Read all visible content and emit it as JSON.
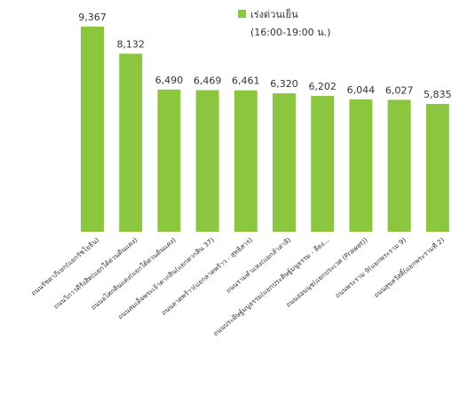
{
  "chart_data": {
    "type": "bar",
    "categories": [
      "ถนนรัชดาภิเษก(แยกรัชโยธิน)",
      "ถนนวิภาวดีรังสิต(แยกใต้ด่วนดินแดง)",
      "ถนนอโศกดินแดง(แยกใต้ด่วนดินแดง)",
      "ถนนสมเด็จพระเจ้าตากสิน(แยกตากสิน 37)",
      "ถนนลาดพร้าว(แยกลาดพร้าว - สุทธิสาร)",
      "ถนนรามคำแหง(แยกลำสาลี)",
      "ถนนประดิษฐ์มนูธรรม(แยกประดิษฐ์มนูธรรม - ลียง...",
      "ถนนอ่อนนุช(แยกประเวศ (Prawet))",
      "ถนนพระราม 9(แยกพระราม 9)",
      "ถนนสุขสวัสดิ์(แยกพระรามที่ 2)"
    ],
    "values": [
      9367,
      8132,
      6490,
      6469,
      6461,
      6320,
      6202,
      6044,
      6027,
      5835
    ],
    "value_labels": [
      "9,367",
      "8,132",
      "6,490",
      "6,469",
      "6,461",
      "6,320",
      "6,202",
      "6,044",
      "6,027",
      "5,835"
    ],
    "series": [
      {
        "name": "เร่งด่วนเย็น (16:00-19:00 น.)",
        "values": [
          9367,
          8132,
          6490,
          6469,
          6461,
          6320,
          6202,
          6044,
          6027,
          5835
        ]
      }
    ],
    "title": "",
    "xlabel": "",
    "ylabel": "",
    "ylim": [
      0,
      9367
    ],
    "grid": false,
    "legend_position": "top-center",
    "bar_color": "#8cc63f"
  },
  "legend": {
    "label": "เร่งด่วนเย็น",
    "sublabel": "(16:00-19:00 น.)"
  }
}
